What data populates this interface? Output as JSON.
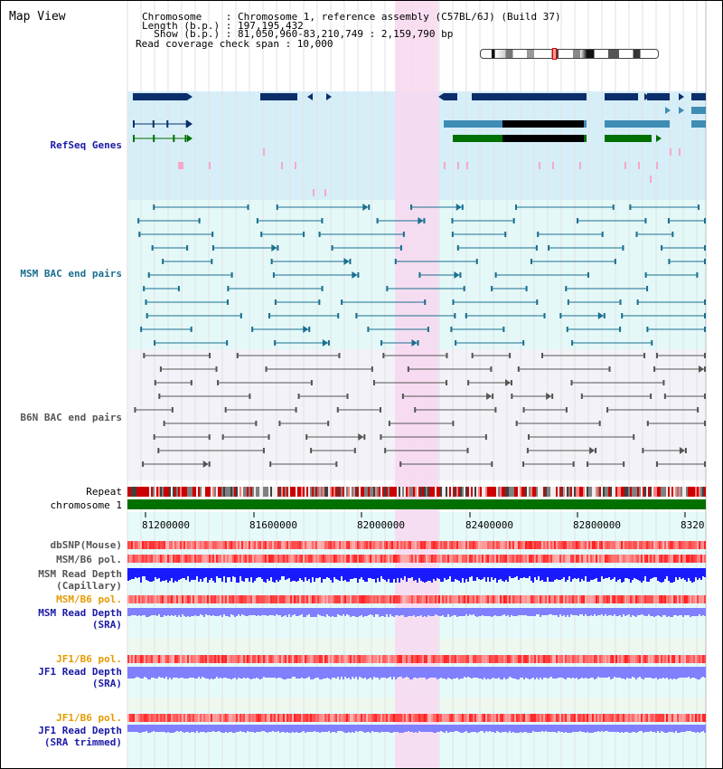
{
  "header": {
    "title": "Map View",
    "chromosome_line": "Chromosome    : Chromosome 1, reference assembly (C57BL/6J) (Build 37)",
    "length_line": "Length (b.p.) : 197,195,432",
    "show_line": "  Show (b.p.) : 81,050,960-83,210,749 : 2,159,790 bp",
    "coverage_line": "Read coverage check span : 10,000"
  },
  "tracks": {
    "refseq": "RefSeq Genes",
    "msm_bac": "MSM BAC end pairs",
    "b6n_bac": "B6N BAC end pairs",
    "repeat": "Repeat",
    "chromosome": "chromosome 1",
    "dbsnp": "dbSNP(Mouse)",
    "msm_b6_pol_1": "MSM/B6 pol.",
    "msm_read_depth_cap_1": "MSM Read Depth",
    "msm_read_depth_cap_2": "(Capillary)",
    "msm_b6_pol_2": "MSM/B6 pol.",
    "msm_read_depth_sra_1": "MSM Read Depth",
    "msm_read_depth_sra_2": "(SRA)",
    "jf1_b6_pol_1": "JF1/B6 pol.",
    "jf1_read_depth_sra_1": "JF1 Read Depth",
    "jf1_read_depth_sra_2": "(SRA)",
    "jf1_b6_pol_2": "JF1/B6 pol.",
    "jf1_read_depth_trim_1": "JF1 Read Depth",
    "jf1_read_depth_trim_2": "(SRA trimmed)"
  },
  "axis": {
    "ticks": [
      "81200000",
      "81600000",
      "82000000",
      "82400000",
      "82800000",
      "8320"
    ]
  },
  "colors": {
    "refseq_bg": "#d6eef8",
    "msm_bg": "#e4f8f8",
    "b6n_bg": "#f2f2f8",
    "highlight": "#f8d8f0",
    "gene_dark": "#0b2f6b",
    "gene_mid": "#3e8db5",
    "gene_green": "#007000",
    "msm_line": "#1a6f8f",
    "b6n_line": "#555555",
    "chromosome_bar": "#007000",
    "depth_blue": "#1a1aff",
    "depth_light": "#8080ff"
  }
}
